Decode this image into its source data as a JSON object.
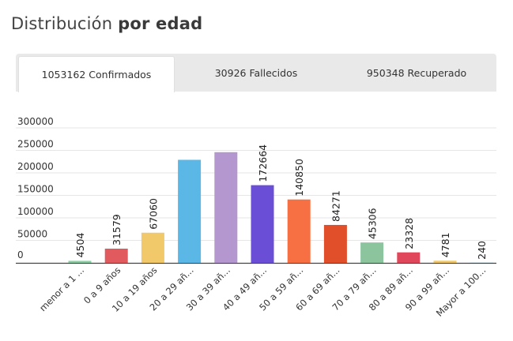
{
  "header": {
    "title_regular": "Distribución",
    "title_bold": "por edad"
  },
  "tabs": [
    {
      "label": "1053162 Confirmados",
      "active": true
    },
    {
      "label": "30926 Fallecidos",
      "active": false
    },
    {
      "label": "950348 Recuperado",
      "active": false
    }
  ],
  "chart_data": {
    "type": "bar",
    "title": "",
    "xlabel": "",
    "ylabel": "",
    "ylim": [
      0,
      300000
    ],
    "yticks": [
      "300000",
      "250000",
      "200000",
      "150000",
      "100000",
      "50000",
      "0"
    ],
    "grid": true,
    "categories": [
      "menor a 1 ...",
      "0 a 9 años",
      "10 a 19 años",
      "20 a 29 añ...",
      "30 a 39 añ...",
      "40 a 49 añ...",
      "50 a 59 añ...",
      "60 a 69 añ...",
      "70 a 79 añ...",
      "80 a 89 añ...",
      "90 a 99 añ...",
      "Mayor a 100..."
    ],
    "values": [
      4504,
      31579,
      67060,
      229000,
      246000,
      172664,
      140850,
      84271,
      45306,
      23328,
      4781,
      240
    ],
    "labels": [
      "4504",
      "31579",
      "67060",
      "",
      "",
      "172664",
      "140850",
      "84271",
      "45306",
      "23328",
      "4781",
      "240"
    ],
    "colors": [
      "#8ccfa5",
      "#e05a5e",
      "#f1c96a",
      "#5bb7e6",
      "#b597cf",
      "#6a4fd6",
      "#f77043",
      "#e04e2a",
      "#8cc49e",
      "#e0475a",
      "#f1c96a",
      "#5bb7e6"
    ]
  }
}
